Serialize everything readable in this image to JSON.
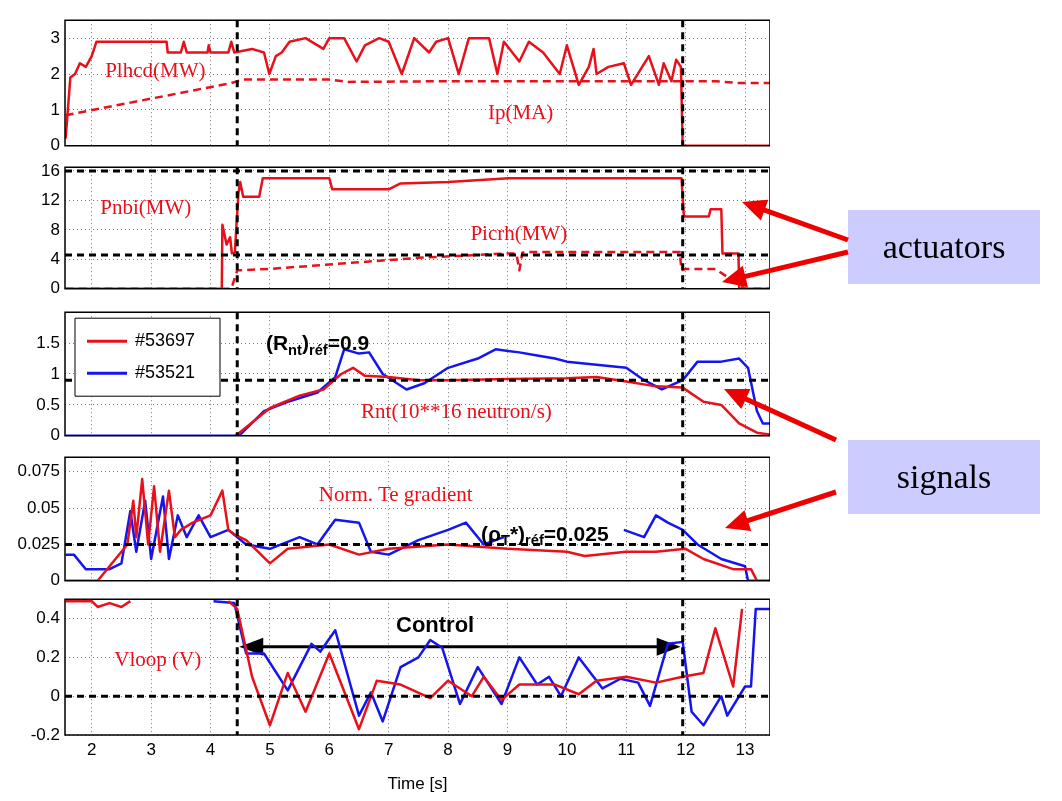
{
  "chart_data": [
    {
      "type": "line",
      "xlim": [
        1.55,
        13.42
      ],
      "xticks": [
        2,
        3,
        4,
        5,
        6,
        7,
        8,
        9,
        10,
        11,
        12,
        13
      ],
      "ylim": [
        0,
        3.5
      ],
      "yticks": [
        0,
        1,
        2,
        3
      ],
      "tick_labels": "y",
      "grid": true,
      "series": [
        {
          "name": "Plhcd(MW)",
          "color": "#e8101a",
          "x": [
            1.56,
            1.64,
            1.72,
            1.8,
            1.9,
            2.0,
            2.08,
            3.26,
            3.28,
            3.5,
            3.55,
            3.6,
            3.95,
            3.97,
            4.0,
            4.3,
            4.35,
            4.4,
            4.7,
            4.9,
            4.99,
            5.1,
            5.2,
            5.33,
            5.6,
            5.9,
            6.0,
            6.25,
            6.46,
            6.6,
            6.84,
            7.0,
            7.22,
            7.43,
            7.68,
            7.8,
            8.0,
            8.18,
            8.35,
            8.69,
            8.83,
            8.94,
            9.2,
            9.36,
            9.6,
            9.88,
            10.0,
            10.2,
            10.37,
            10.45,
            10.5,
            10.7,
            10.96,
            11.08,
            11.38,
            11.55,
            11.63,
            11.76,
            11.84,
            11.92,
            11.95,
            12.5,
            13.42
          ],
          "values": [
            0.2,
            1.9,
            2.0,
            2.3,
            2.2,
            2.5,
            2.9,
            2.9,
            2.6,
            2.6,
            2.9,
            2.6,
            2.6,
            2.8,
            2.6,
            2.6,
            2.9,
            2.6,
            2.7,
            2.6,
            2.0,
            2.5,
            2.6,
            2.9,
            3.0,
            2.7,
            3.0,
            3.0,
            2.35,
            2.8,
            3.0,
            2.9,
            2.0,
            3.0,
            2.6,
            2.9,
            3.0,
            2.0,
            3.0,
            3.0,
            2.0,
            2.9,
            2.35,
            2.9,
            2.6,
            2.0,
            2.8,
            1.7,
            2.2,
            2.7,
            2.0,
            2.2,
            2.3,
            1.7,
            2.5,
            1.7,
            2.3,
            1.8,
            2.4,
            2.2,
            0,
            0,
            0
          ]
        },
        {
          "name": "Ip(MA)",
          "color": "#e8101a",
          "line_style": "dashed",
          "x": [
            1.56,
            4.35,
            4.55,
            6.0,
            6.3,
            8.0,
            11.95,
            12.5,
            12.9,
            13.42
          ],
          "values": [
            0.85,
            1.75,
            1.85,
            1.85,
            1.78,
            1.8,
            1.8,
            1.8,
            1.75,
            1.75
          ]
        }
      ],
      "ref_lines": [
        {
          "axis": "x",
          "value": 4.45
        },
        {
          "axis": "x",
          "value": 11.95
        }
      ]
    },
    {
      "type": "line",
      "xlim": [
        1.55,
        13.42
      ],
      "xticks": [
        2,
        3,
        4,
        5,
        6,
        7,
        8,
        9,
        10,
        11,
        12,
        13
      ],
      "ylim": [
        0,
        16.5
      ],
      "yticks": [
        0,
        4,
        8,
        12,
        16
      ],
      "tick_labels": "y",
      "grid": true,
      "series": [
        {
          "name": "Pnbi(MW)",
          "color": "#e8101a",
          "x": [
            1.56,
            4.19,
            4.2,
            4.27,
            4.33,
            4.36,
            4.41,
            4.47,
            4.5,
            4.55,
            4.82,
            4.88,
            6.0,
            6.05,
            7.0,
            7.2,
            8.0,
            9.02,
            11.93,
            11.97,
            12.39,
            12.42,
            12.6,
            12.62,
            12.89,
            12.9,
            13.42
          ],
          "values": [
            0,
            0,
            8.7,
            6,
            7,
            4.8,
            5,
            13,
            14.5,
            12.5,
            12.5,
            15,
            15,
            13.5,
            13.5,
            14.3,
            14.5,
            15,
            15,
            9.8,
            9.8,
            10.8,
            10.8,
            4.8,
            4.8,
            0,
            0
          ]
        },
        {
          "name": "Picrh(MW)",
          "color": "#e8101a",
          "line_style": "dashed",
          "x": [
            1.56,
            4.35,
            4.45,
            5.0,
            6.0,
            7.5,
            8.5,
            9.0,
            9.15,
            9.2,
            9.25,
            9.3,
            11.9,
            11.93,
            12.0,
            12.5,
            13.0,
            13.42
          ],
          "values": [
            0,
            0,
            2.5,
            2.7,
            3.3,
            4.2,
            4.6,
            4.8,
            4.8,
            2.5,
            4.9,
            5.0,
            5.0,
            2.5,
            2.7,
            2.7,
            0,
            0
          ]
        }
      ],
      "annotations": [
        "actuators"
      ],
      "ref_lines": [
        {
          "axis": "x",
          "value": 4.45
        },
        {
          "axis": "x",
          "value": 11.95
        },
        {
          "axis": "y",
          "value": 16
        },
        {
          "axis": "y",
          "value": 4.6
        }
      ]
    },
    {
      "type": "line",
      "xlim": [
        1.55,
        13.42
      ],
      "xticks": [
        2,
        3,
        4,
        5,
        6,
        7,
        8,
        9,
        10,
        11,
        12,
        13
      ],
      "ylim": [
        0,
        2
      ],
      "yticks": [
        0,
        0.5,
        1,
        1.5
      ],
      "tick_labels": "y",
      "grid": true,
      "legend": "top left",
      "series": [
        {
          "name": "#53697",
          "color": "#e8101a",
          "x": [
            4.45,
            5.0,
            5.5,
            5.9,
            6.2,
            6.4,
            6.6,
            7.0,
            7.5,
            8.0,
            9.0,
            10.0,
            10.5,
            11.0,
            11.5,
            11.95,
            12.3,
            12.6,
            12.9,
            13.2,
            13.42
          ],
          "values": [
            0.02,
            0.45,
            0.65,
            0.75,
            1.0,
            1.1,
            0.97,
            0.95,
            0.9,
            0.9,
            0.92,
            0.93,
            0.95,
            0.88,
            0.8,
            0.78,
            0.55,
            0.5,
            0.2,
            0.05,
            0.02
          ]
        },
        {
          "name": "#53521",
          "color": "#1515f0",
          "x": [
            1.56,
            4.4,
            4.5,
            4.9,
            5.3,
            5.8,
            6.1,
            6.25,
            6.5,
            6.67,
            6.9,
            7.3,
            7.6,
            8.0,
            8.5,
            8.8,
            9.2,
            9.5,
            9.8,
            10.0,
            10.5,
            11.0,
            11.3,
            11.6,
            11.95,
            12.2,
            12.6,
            12.9,
            13.05,
            13.2,
            13.3,
            13.42
          ],
          "values": [
            0,
            0,
            0.02,
            0.4,
            0.55,
            0.7,
            0.95,
            1.4,
            1.33,
            1.35,
            1.0,
            0.75,
            0.85,
            1.1,
            1.25,
            1.4,
            1.35,
            1.3,
            1.25,
            1.2,
            1.15,
            1.1,
            0.9,
            0.75,
            0.9,
            1.2,
            1.2,
            1.25,
            1.1,
            0.4,
            0.2,
            0.2
          ]
        }
      ],
      "annotations": [
        "Rnt(10**16 neutron/s)",
        "signals"
      ],
      "ref_lines": [
        {
          "axis": "x",
          "value": 4.45
        },
        {
          "axis": "x",
          "value": 11.95
        },
        {
          "axis": "y",
          "value": 0.9,
          "label": "(R$_{nt}$)$_{réf}$=0.9"
        }
      ]
    },
    {
      "type": "line",
      "xlim": [
        1.55,
        13.42
      ],
      "xticks": [
        2,
        3,
        4,
        5,
        6,
        7,
        8,
        9,
        10,
        11,
        12,
        13
      ],
      "ylim": [
        0,
        0.085
      ],
      "yticks": [
        0,
        0.025,
        0.05,
        0.075
      ],
      "tick_labels": "y",
      "grid": true,
      "series": [
        {
          "color": "#e8101a",
          "x": [
            1.56,
            2.1,
            2.4,
            2.6,
            2.7,
            2.75,
            2.85,
            2.95,
            3.05,
            3.15,
            3.3,
            3.4,
            3.5,
            3.7,
            4.0,
            4.2,
            4.3,
            4.4,
            4.6,
            5.0,
            5.3,
            6.0,
            6.5,
            7.0,
            8.0,
            9.0,
            10.0,
            10.3,
            11.0,
            11.5,
            12.0,
            12.3,
            12.8,
            13.1,
            13.2
          ],
          "values": [
            0,
            0,
            0.015,
            0.025,
            0.055,
            0.03,
            0.07,
            0.025,
            0.065,
            0.02,
            0.062,
            0.03,
            0.035,
            0.04,
            0.045,
            0.062,
            0.035,
            0.032,
            0.028,
            0.012,
            0.022,
            0.025,
            0.018,
            0.022,
            0.025,
            0.022,
            0.02,
            0.017,
            0.02,
            0.02,
            0.022,
            0.015,
            0.008,
            0.008,
            0
          ]
        },
        {
          "color": "#1515f0",
          "x": [
            1.56,
            1.7,
            1.9,
            2.3,
            2.5,
            2.65,
            2.75,
            2.9,
            3.0,
            3.2,
            3.3,
            3.45,
            3.6,
            3.8,
            4.0,
            4.3,
            4.6,
            5.0,
            5.5,
            5.8,
            6.1,
            6.5,
            6.7,
            7.0,
            7.5,
            8.0,
            8.3,
            8.6,
            8.94,
            9.0,
            10.96,
            11.3,
            11.5,
            11.7,
            11.95,
            12.2,
            12.6,
            13.0,
            13.05,
            13.42
          ],
          "values": [
            0.018,
            0.018,
            0.008,
            0.008,
            0.012,
            0.048,
            0.02,
            0.055,
            0.015,
            0.058,
            0.015,
            0.045,
            0.03,
            0.045,
            0.03,
            0.035,
            0.025,
            0.022,
            0.03,
            0.025,
            0.042,
            0.04,
            0.02,
            0.018,
            0.028,
            0.035,
            0.04,
            0.025,
            0.03,
            null,
            0.035,
            0.03,
            0.045,
            0.04,
            0.035,
            0.025,
            0.015,
            0.01,
            0,
            0
          ]
        }
      ],
      "annotations": [
        "Norm. Te gradient"
      ],
      "ref_lines": [
        {
          "axis": "x",
          "value": 4.45
        },
        {
          "axis": "x",
          "value": 11.95
        },
        {
          "axis": "y",
          "value": 0.025,
          "label": "(ρ$_{T}$*)$_{réf}$=0.025"
        }
      ]
    },
    {
      "type": "line",
      "xlim": [
        1.55,
        13.42
      ],
      "xticks": [
        2,
        3,
        4,
        5,
        6,
        7,
        8,
        9,
        10,
        11,
        12,
        13
      ],
      "ylim": [
        -0.2,
        0.5
      ],
      "yticks": [
        -0.2,
        0,
        0.2,
        0.4
      ],
      "grid": true,
      "xlabel": "Time [s]",
      "series": [
        {
          "color": "#e8101a",
          "x": [
            1.56,
            2.0,
            2.1,
            2.3,
            2.5,
            2.65,
            2.7,
            4.3,
            4.45,
            4.7,
            5.0,
            5.3,
            5.6,
            6.0,
            6.5,
            6.8,
            7.2,
            7.7,
            8.0,
            8.4,
            8.6,
            8.9,
            9.2,
            9.8,
            10.2,
            10.5,
            11.0,
            11.5,
            11.95,
            12.3,
            12.5,
            12.8,
            12.95
          ],
          "values": [
            0.49,
            0.49,
            0.46,
            0.48,
            0.46,
            0.49,
            null,
            0.49,
            0.45,
            0.1,
            -0.15,
            0.12,
            -0.08,
            0.22,
            -0.17,
            0.08,
            0.06,
            -0.01,
            0.08,
            0.0,
            0.1,
            -0.02,
            0.06,
            0.06,
            0.01,
            0.08,
            0.1,
            0.07,
            0.1,
            0.12,
            0.35,
            0.05,
            0.45
          ]
        },
        {
          "color": "#1515f0",
          "x": [
            4.05,
            4.4,
            4.6,
            4.9,
            5.3,
            5.7,
            5.85,
            6.1,
            6.5,
            6.7,
            6.9,
            7.2,
            7.5,
            7.7,
            7.9,
            8.2,
            8.5,
            8.9,
            9.2,
            9.5,
            9.7,
            9.9,
            10.2,
            10.6,
            10.9,
            11.2,
            11.4,
            11.7,
            11.95,
            12.1,
            12.3,
            12.6,
            12.7,
            13.0,
            13.1,
            13.18,
            13.42
          ],
          "values": [
            0.49,
            0.48,
            0.22,
            0.22,
            0.03,
            0.27,
            0.23,
            0.34,
            -0.1,
            0.02,
            -0.13,
            0.15,
            0.2,
            0.29,
            0.25,
            -0.04,
            0.15,
            -0.04,
            0.2,
            0.06,
            0.1,
            0.0,
            0.2,
            0.04,
            0.09,
            0.07,
            -0.05,
            0.27,
            0.28,
            -0.08,
            -0.15,
            0.0,
            -0.1,
            0.05,
            0.05,
            0.45,
            0.45
          ]
        }
      ],
      "annotations": [
        "Vloop (V)",
        "Control"
      ],
      "ref_lines": [
        {
          "axis": "x",
          "value": 4.45
        },
        {
          "axis": "x",
          "value": 11.95
        },
        {
          "axis": "y",
          "value": 0
        }
      ]
    }
  ]
}
